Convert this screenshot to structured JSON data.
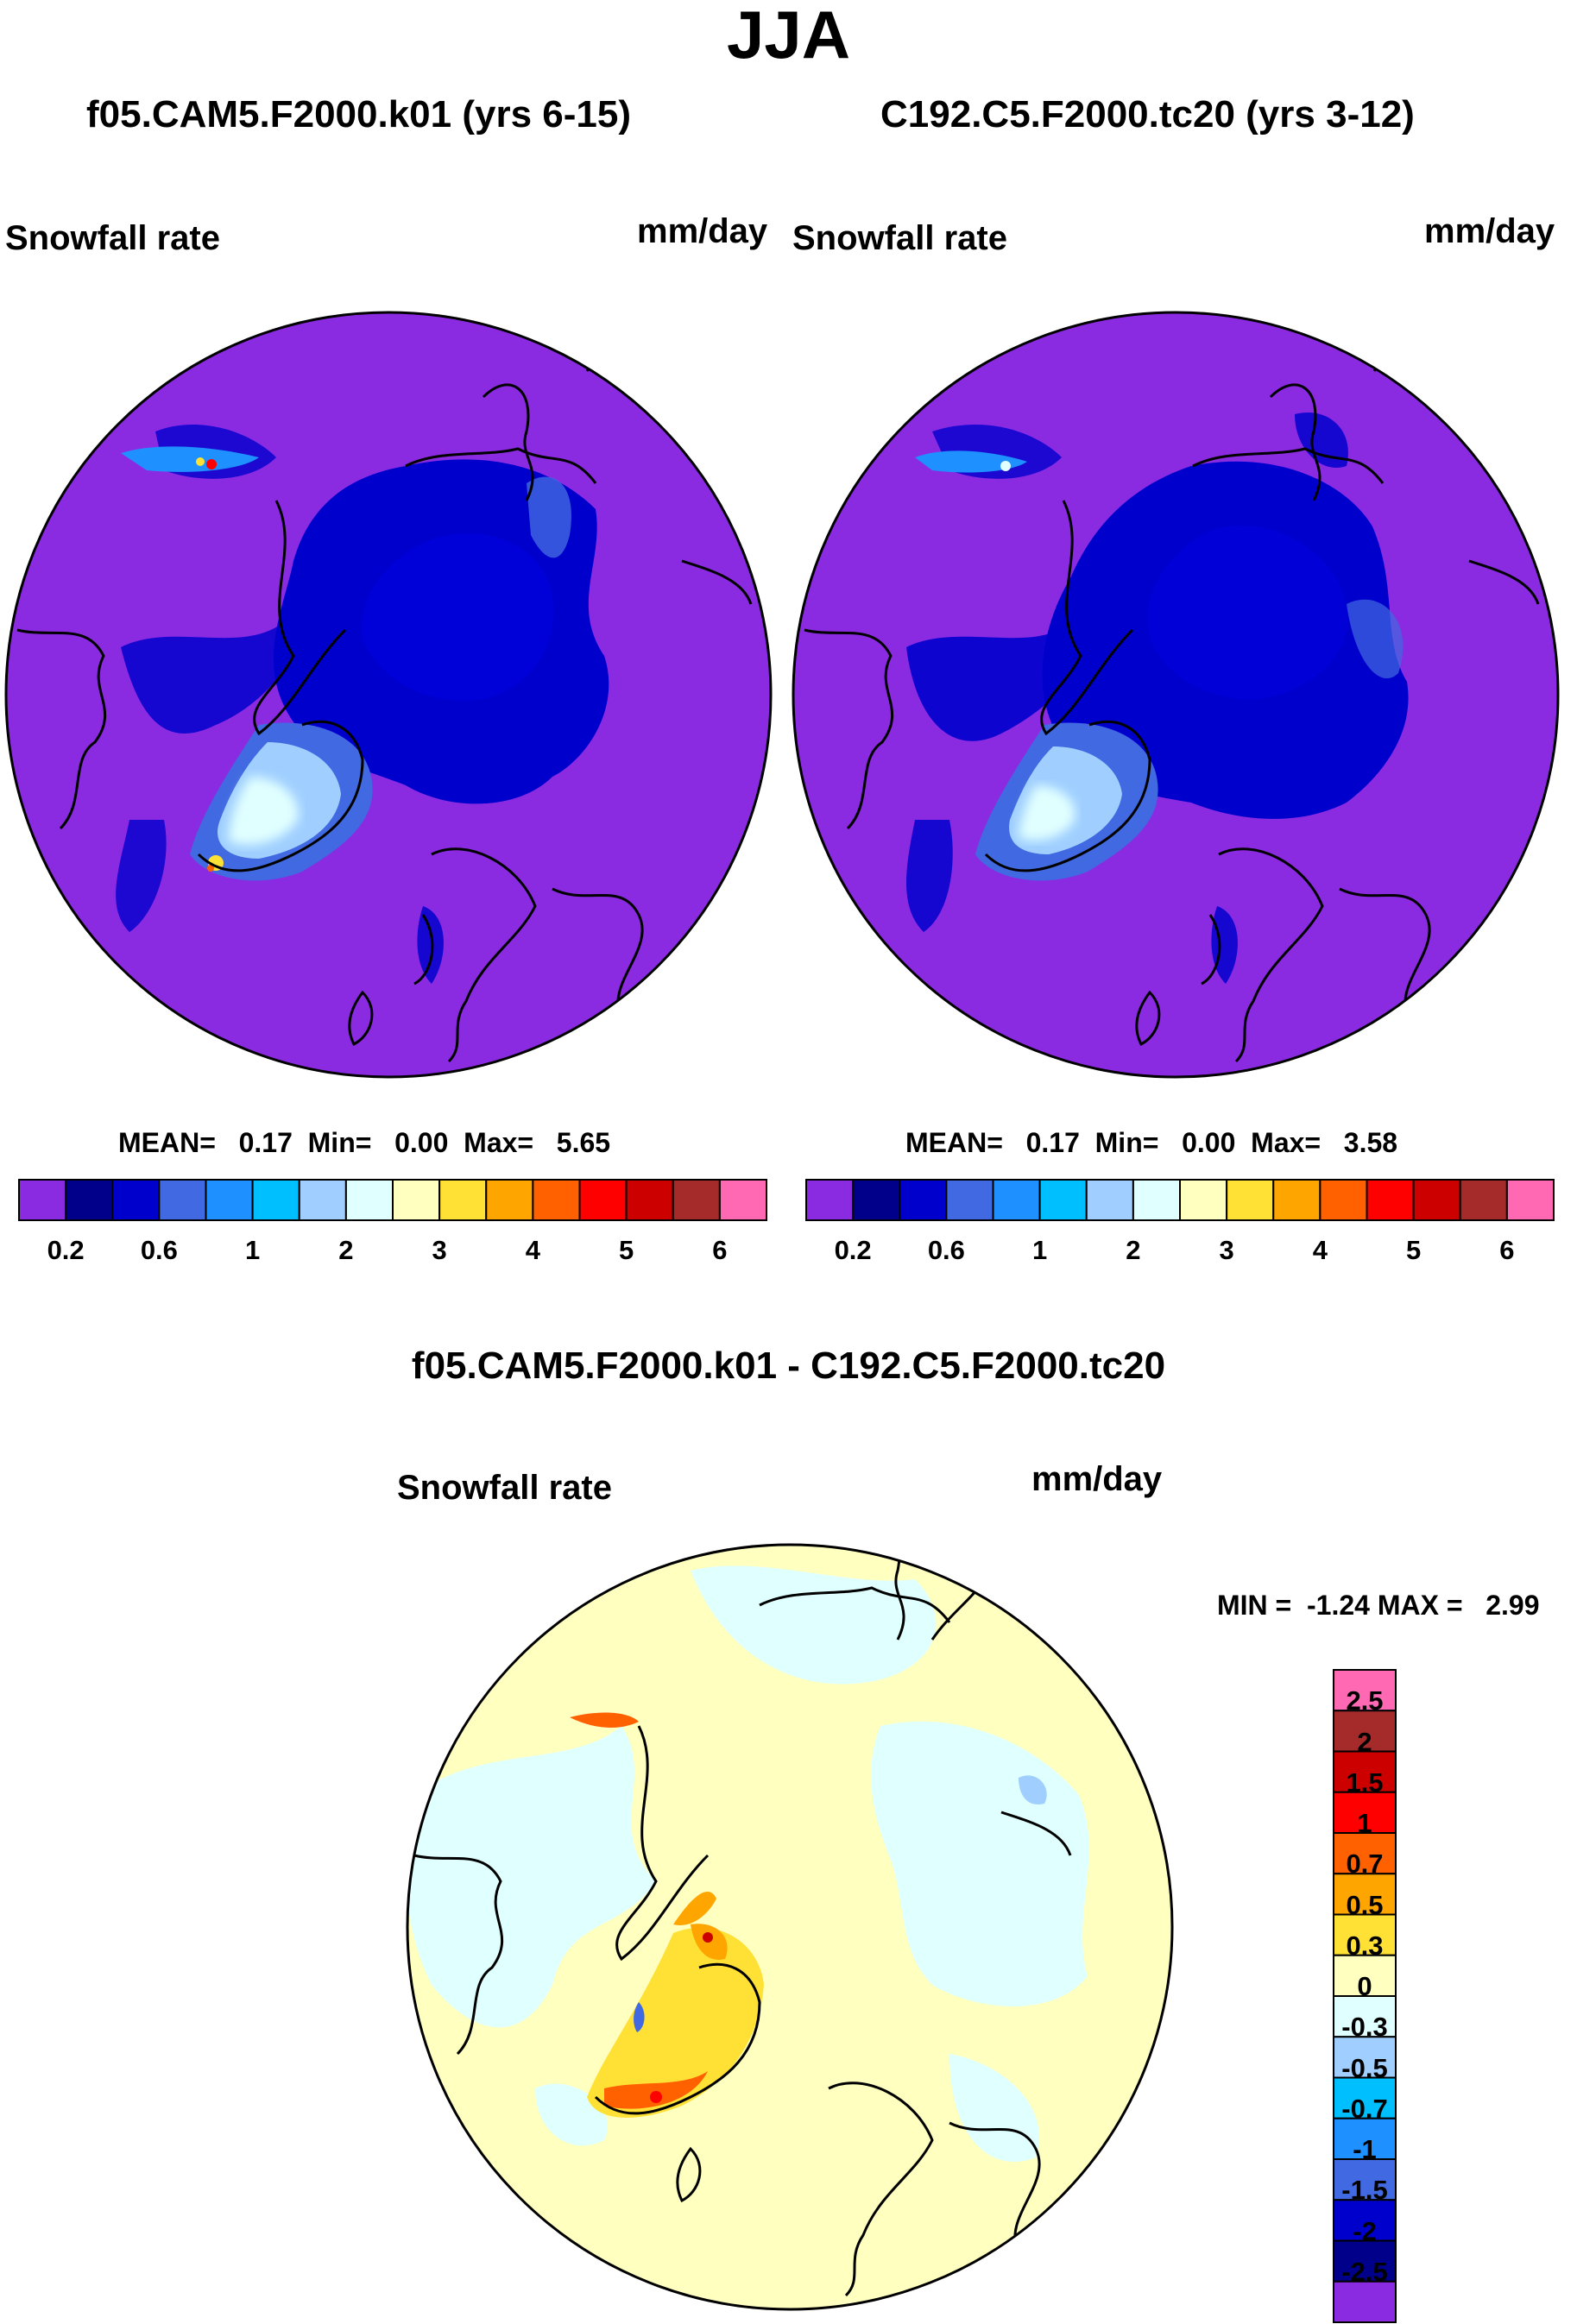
{
  "season_title": "JJA",
  "panels": [
    {
      "run_title": "f05.CAM5.F2000.k01 (yrs 6-15)",
      "variable": "Snowfall rate",
      "units": "mm/day",
      "stats": {
        "mean_label": "MEAN=",
        "mean": "0.17",
        "min_label": "Min=",
        "min": "0.00",
        "max_label": "Max=",
        "max": "5.65"
      }
    },
    {
      "run_title": "C192.C5.F2000.tc20 (yrs 3-12)",
      "variable": "Snowfall rate",
      "units": "mm/day",
      "stats": {
        "mean_label": "MEAN=",
        "mean": "0.17",
        "min_label": "Min=",
        "min": "0.00",
        "max_label": "Max=",
        "max": "3.58"
      }
    }
  ],
  "diff_panel": {
    "title": "f05.CAM5.F2000.k01 - C192.C5.F2000.tc20",
    "variable": "Snowfall rate",
    "units": "mm/day",
    "min_label": "MIN =",
    "min": "-1.24",
    "max_label": "MAX =",
    "max": "2.99"
  },
  "colorbar_abs": {
    "colors": [
      "#8a2be2",
      "#00008b",
      "#0000cd",
      "#4169e1",
      "#1e90ff",
      "#00bfff",
      "#a0cfff",
      "#e0ffff",
      "#ffffc0",
      "#ffe135",
      "#ffa500",
      "#ff6000",
      "#ff0000",
      "#cd0000",
      "#a52a2a",
      "#ff69b4"
    ],
    "tick_labels": [
      "0.2",
      "0.6",
      "1",
      "2",
      "3",
      "4",
      "5",
      "6"
    ]
  },
  "colorbar_diff": {
    "colors_top_to_bottom": [
      "#ff69b4",
      "#a52a2a",
      "#cd0000",
      "#ff0000",
      "#ff6000",
      "#ffa500",
      "#ffe135",
      "#ffffc0",
      "#e0ffff",
      "#a0cfff",
      "#00bfff",
      "#1e90ff",
      "#4169e1",
      "#0000cd",
      "#00008b",
      "#8a2be2"
    ],
    "tick_labels_top_to_bottom": [
      "2.5",
      "2",
      "1.5",
      "1",
      "0.7",
      "0.5",
      "0.3",
      "0",
      "-0.3",
      "-0.5",
      "-0.7",
      "-1",
      "-1.5",
      "-2",
      "-2.5"
    ]
  },
  "chart_data": [
    {
      "type": "heatmap",
      "projection": "north polar stereographic",
      "title": "f05.CAM5.F2000.k01 (yrs 6-15)",
      "variable": "Snowfall rate",
      "units": "mm/day",
      "mean": 0.17,
      "min": 0.0,
      "max": 5.65,
      "levels": [
        0.2,
        0.4,
        0.6,
        0.8,
        1,
        1.5,
        2,
        2.5,
        3,
        3.5,
        4,
        4.5,
        5,
        5.5,
        6
      ]
    },
    {
      "type": "heatmap",
      "projection": "north polar stereographic",
      "title": "C192.C5.F2000.tc20 (yrs 3-12)",
      "variable": "Snowfall rate",
      "units": "mm/day",
      "mean": 0.17,
      "min": 0.0,
      "max": 3.58,
      "levels": [
        0.2,
        0.4,
        0.6,
        0.8,
        1,
        1.5,
        2,
        2.5,
        3,
        3.5,
        4,
        4.5,
        5,
        5.5,
        6
      ]
    },
    {
      "type": "heatmap",
      "projection": "north polar stereographic",
      "title": "f05.CAM5.F2000.k01 - C192.C5.F2000.tc20",
      "variable": "Snowfall rate",
      "units": "mm/day",
      "min": -1.24,
      "max": 2.99,
      "levels": [
        -2.5,
        -2,
        -1.5,
        -1,
        -0.7,
        -0.5,
        -0.3,
        0,
        0.3,
        0.5,
        0.7,
        1,
        1.5,
        2,
        2.5
      ]
    }
  ]
}
